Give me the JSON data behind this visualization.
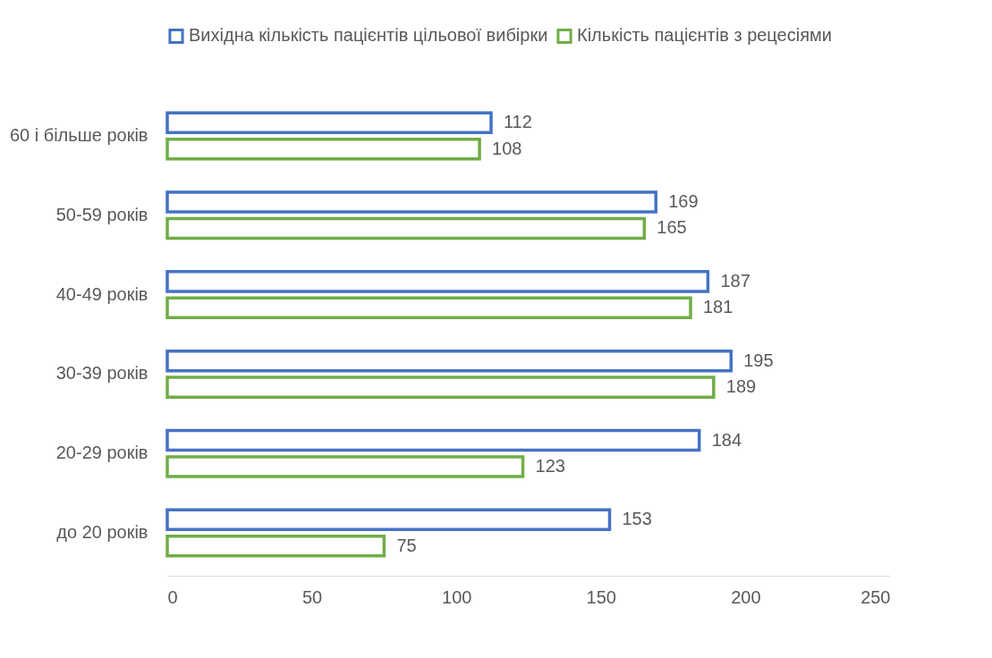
{
  "chart_data": {
    "type": "bar",
    "orientation": "horizontal",
    "categories": [
      "60 і більше років",
      "50-59 років",
      "40-49 років",
      "30-39 років",
      "20-29 років",
      "до 20 років"
    ],
    "series": [
      {
        "name": "Вихідна кількість пацієнтів цільової вибірки",
        "color": "#4472c4",
        "values": [
          112,
          169,
          187,
          195,
          184,
          153
        ]
      },
      {
        "name": "Кількість пацієнтів з рецесіями",
        "color": "#70ad47",
        "values": [
          108,
          165,
          181,
          189,
          123,
          75
        ]
      }
    ],
    "xlim": [
      0,
      250
    ],
    "xticks": [
      0,
      50,
      100,
      150,
      200,
      250
    ],
    "grid": false,
    "legend": "top",
    "data_labels": true
  }
}
